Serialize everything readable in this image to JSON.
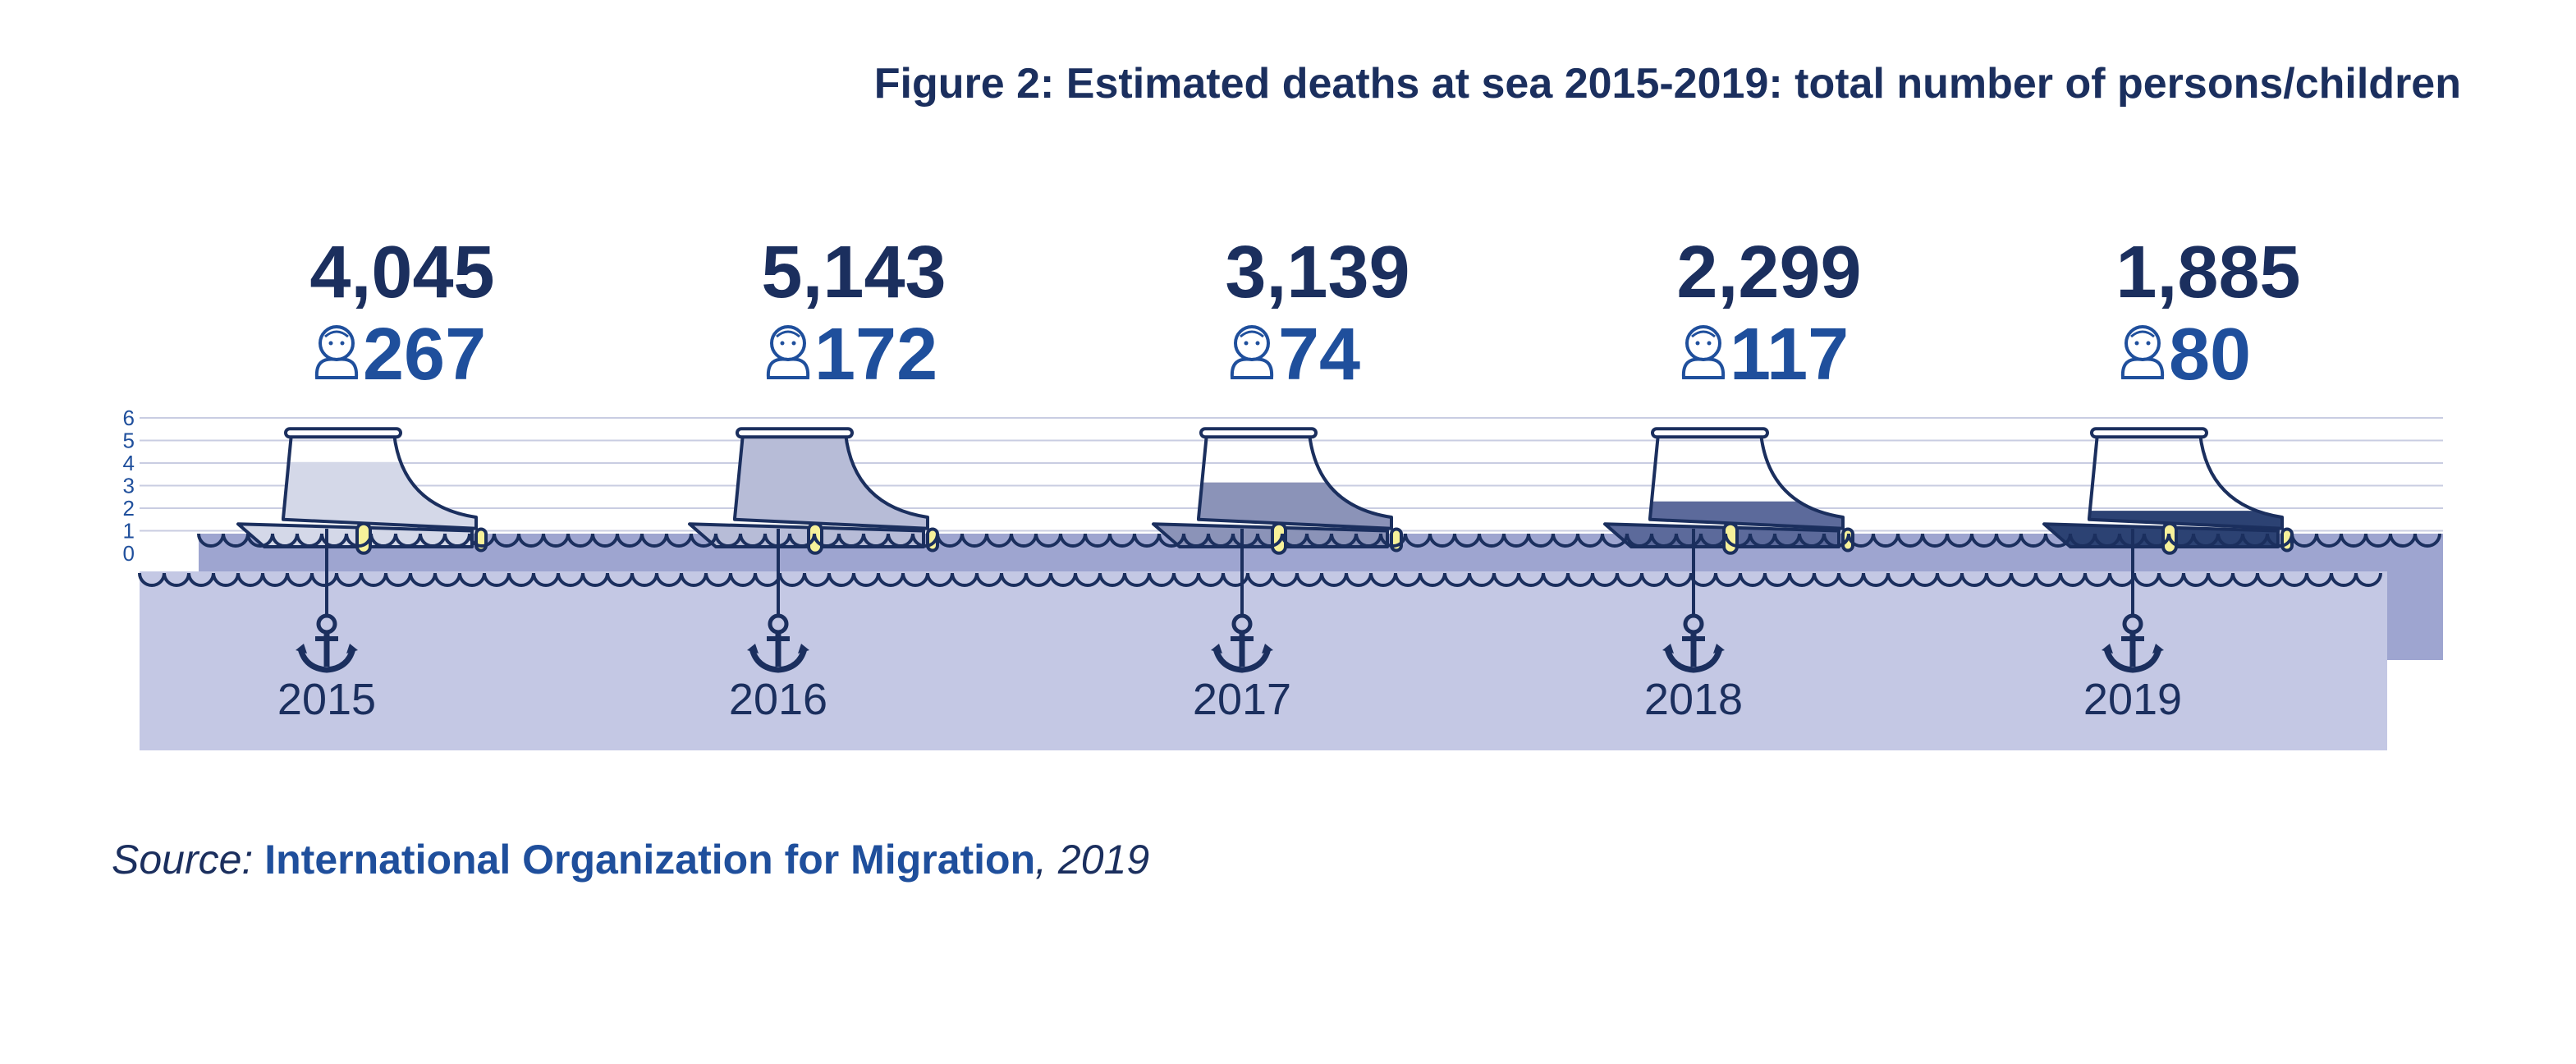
{
  "title": "Figure 2: Estimated deaths at sea 2015-2019: total number of persons/children",
  "source": {
    "prefix": "Source:",
    "org": "International Organization for Migration",
    "suffix": ", 2019"
  },
  "chart_data": {
    "type": "bar",
    "categories": [
      "2015",
      "2016",
      "2017",
      "2018",
      "2019"
    ],
    "series": [
      {
        "name": "",
        "values": [
          4045,
          5143,
          3139,
          2299,
          1885
        ]
      },
      {
        "name": "",
        "values": [
          267,
          172,
          74,
          117,
          80
        ]
      }
    ],
    "value_labels": {
      "persons": [
        "4,045",
        "5,143",
        "3,139",
        "2,299",
        "1,885"
      ],
      "children": [
        "267",
        "172",
        "74",
        "117",
        "80"
      ]
    },
    "scale_ticks": [
      "0",
      "1",
      "2",
      "3",
      "4",
      "5",
      "6"
    ],
    "scale_unit": 1000,
    "ylim": [
      0,
      6
    ],
    "grid": true,
    "fill_colors": [
      "#d4d8e8",
      "#b7bcd7",
      "#8b93b8",
      "#5c6a9b",
      "#2c4273"
    ],
    "colors": {
      "navy": "#1b2f5e",
      "blue": "#1f4f9c",
      "sea_dark": "#9ea5d0",
      "sea_light": "#c4c8e4",
      "fender": "#f7f19a"
    }
  }
}
